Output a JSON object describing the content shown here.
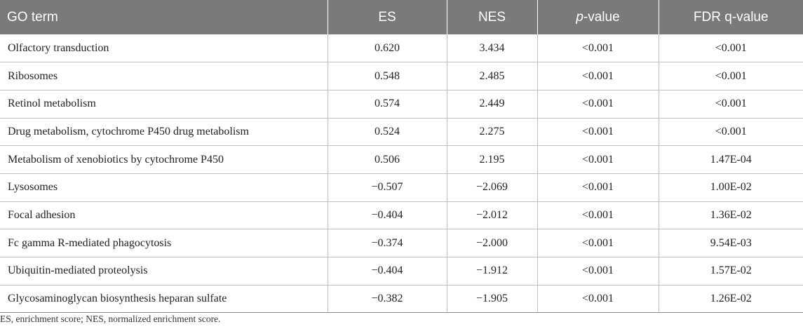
{
  "table": {
    "headers": {
      "go_term": "GO term",
      "es": "ES",
      "nes": "NES",
      "p_prefix": "p",
      "p_suffix": "-value",
      "fdr": "FDR q-value"
    },
    "rows": [
      {
        "term": "Olfactory transduction",
        "es": "0.620",
        "nes": "3.434",
        "p": "<0.001",
        "fdr": "<0.001"
      },
      {
        "term": "Ribosomes",
        "es": "0.548",
        "nes": "2.485",
        "p": "<0.001",
        "fdr": "<0.001"
      },
      {
        "term": "Retinol metabolism",
        "es": "0.574",
        "nes": "2.449",
        "p": "<0.001",
        "fdr": "<0.001"
      },
      {
        "term": "Drug metabolism, cytochrome P450 drug metabolism",
        "es": "0.524",
        "nes": "2.275",
        "p": "<0.001",
        "fdr": "<0.001"
      },
      {
        "term": "Metabolism of xenobiotics by cytochrome P450",
        "es": "0.506",
        "nes": "2.195",
        "p": "<0.001",
        "fdr": "1.47E-04"
      },
      {
        "term": "Lysosomes",
        "es": "−0.507",
        "nes": "−2.069",
        "p": "<0.001",
        "fdr": "1.00E-02"
      },
      {
        "term": "Focal adhesion",
        "es": "−0.404",
        "nes": "−2.012",
        "p": "<0.001",
        "fdr": "1.36E-02"
      },
      {
        "term": "Fc gamma R-mediated phagocytosis",
        "es": "−0.374",
        "nes": "−2.000",
        "p": "<0.001",
        "fdr": "9.54E-03"
      },
      {
        "term": "Ubiquitin-mediated proteolysis",
        "es": "−0.404",
        "nes": "−1.912",
        "p": "<0.001",
        "fdr": "1.57E-02"
      },
      {
        "term": "Glycosaminoglycan biosynthesis heparan sulfate",
        "es": "−0.382",
        "nes": "−1.905",
        "p": "<0.001",
        "fdr": "1.26E-02"
      }
    ]
  },
  "footnote": "ES, enrichment score; NES, normalized enrichment score.",
  "colors": {
    "header_bg": "#7a7a7a",
    "header_text": "#ffffff",
    "grid": "#bfbfbf"
  }
}
